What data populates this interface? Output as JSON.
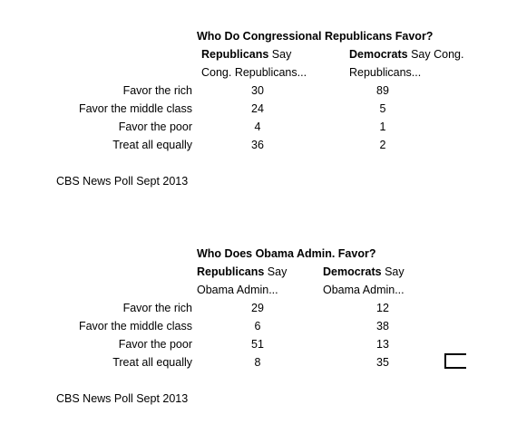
{
  "chart_data": [
    {
      "type": "table",
      "title": "Who Do Congressional Republicans Favor?",
      "columns": [
        {
          "bold": "Republicans",
          "rest": " Say",
          "line2": "Cong. Republicans..."
        },
        {
          "bold": "Democrats",
          "rest": " Say Cong.",
          "line2": "Republicans..."
        }
      ],
      "rows": [
        {
          "label": "Favor the rich",
          "values": [
            "30",
            "89"
          ]
        },
        {
          "label": "Favor the middle class",
          "values": [
            "24",
            "5"
          ]
        },
        {
          "label": "Favor the poor",
          "values": [
            "4",
            "1"
          ]
        },
        {
          "label": "Treat all equally",
          "values": [
            "36",
            "2"
          ]
        }
      ],
      "source": "CBS News Poll Sept 2013"
    },
    {
      "type": "table",
      "title": "Who Does Obama Admin. Favor?",
      "columns": [
        {
          "bold": "Republicans",
          "rest": " Say",
          "line2": "Obama Admin..."
        },
        {
          "bold": "Democrats",
          "rest": " Say",
          "line2": "Obama Admin..."
        }
      ],
      "rows": [
        {
          "label": "Favor the rich",
          "values": [
            "29",
            "12"
          ]
        },
        {
          "label": "Favor the middle class",
          "values": [
            "6",
            "38"
          ]
        },
        {
          "label": "Favor the poor",
          "values": [
            "51",
            "13"
          ]
        },
        {
          "label": "Treat all equally",
          "values": [
            "8",
            "35"
          ]
        }
      ],
      "source": "CBS News Poll Sept 2013"
    }
  ]
}
